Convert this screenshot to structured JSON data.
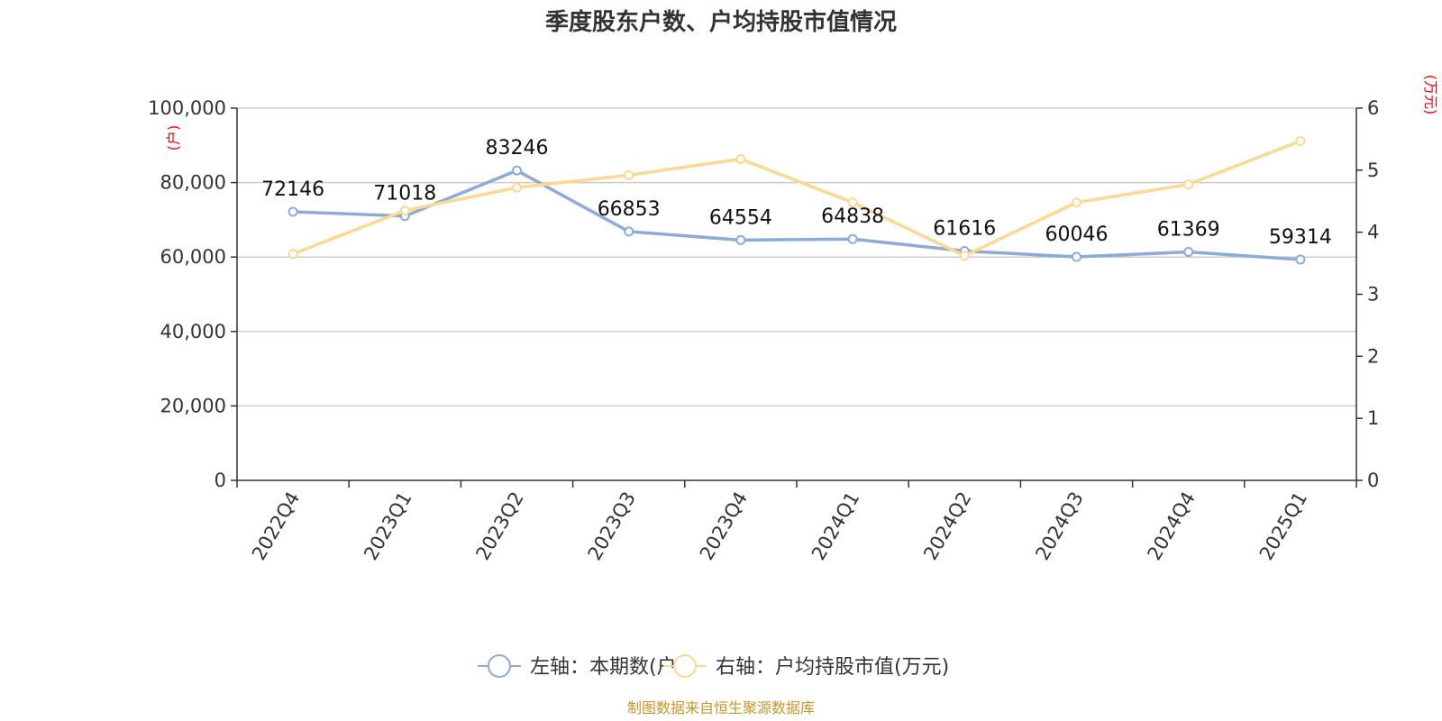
{
  "chart_data": {
    "type": "line",
    "title": "季度股东户数、户均持股市值情况",
    "categories": [
      "2022Q4",
      "2023Q1",
      "2023Q2",
      "2023Q3",
      "2023Q4",
      "2024Q1",
      "2024Q2",
      "2024Q3",
      "2024Q4",
      "2025Q1"
    ],
    "left_axis": {
      "unit": "(户)",
      "ticks": [
        "0",
        "20,000",
        "40,000",
        "60,000",
        "80,000",
        "100,000"
      ],
      "ylim": [
        0,
        100000
      ]
    },
    "right_axis": {
      "unit": "(万元)",
      "ticks": [
        "0",
        "1",
        "2",
        "3",
        "4",
        "5",
        "6"
      ],
      "ylim": [
        0,
        6
      ]
    },
    "series": [
      {
        "name": "左轴：本期数(户)",
        "axis": "left",
        "color": "#8eaadb",
        "values": [
          72146,
          71018,
          83246,
          66853,
          64554,
          64838,
          61616,
          60046,
          61369,
          59314
        ],
        "labels": [
          "72146",
          "71018",
          "83246",
          "66853",
          "64554",
          "64838",
          "61616",
          "60046",
          "61369",
          "59314"
        ]
      },
      {
        "name": "右轴：户均持股市值(万元)",
        "axis": "right",
        "color": "#fbd992",
        "values": [
          3.65,
          4.35,
          4.72,
          4.92,
          5.18,
          4.48,
          3.62,
          4.48,
          4.77,
          5.47
        ]
      }
    ],
    "grid": true,
    "legend_position": "bottom"
  },
  "footer": {
    "source": "制图数据来自恒生聚源数据库"
  }
}
